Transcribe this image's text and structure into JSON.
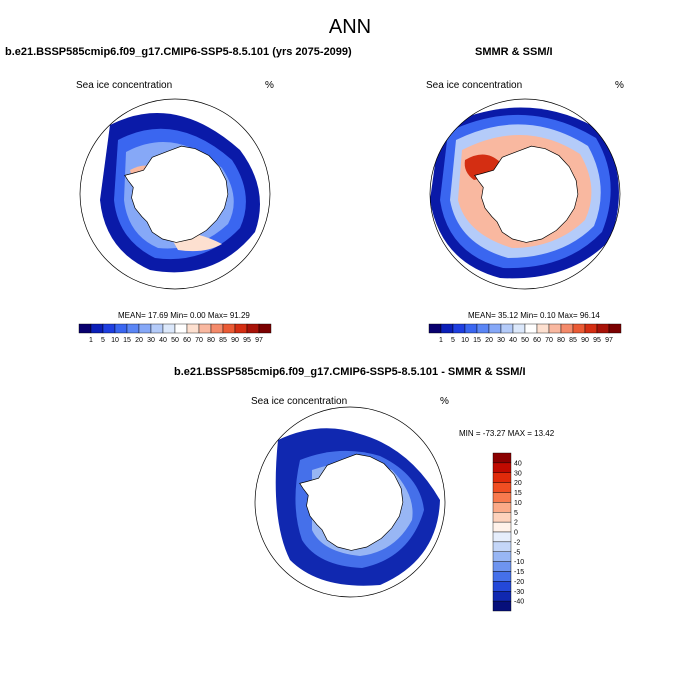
{
  "title": "ANN",
  "panels": [
    {
      "title": "b.e21.BSSP585cmip6.f09_g17.CMIP6-SSP5-8.5.101 (yrs 2075-2099)",
      "variable": "Sea ice concentration",
      "units": "%",
      "stats": "MEAN=  17.69  Min=   0.00  Max=  91.29"
    },
    {
      "title": "SMMR & SSM/I",
      "variable": "Sea ice concentration",
      "units": "%",
      "stats": "MEAN=  35.12  Min=   0.10  Max=  96.14"
    },
    {
      "title": "b.e21.BSSP585cmip6.f09_g17.CMIP6-SSP5-8.5.101 - SMMR & SSM/I",
      "variable": "Sea ice concentration",
      "units": "%",
      "stats": "MIN = -73.27  MAX =  13.42"
    }
  ],
  "colorbar_abs": {
    "labels": [
      "1",
      "5",
      "10",
      "15",
      "20",
      "30",
      "40",
      "50",
      "60",
      "70",
      "80",
      "85",
      "90",
      "95",
      "97"
    ],
    "colors": [
      "#08006e",
      "#0b1fb8",
      "#1f3fe0",
      "#3a66f0",
      "#5b86f5",
      "#86a8f7",
      "#b4cbf9",
      "#dce8fb",
      "#ffffff",
      "#fde0d0",
      "#f9b8a0",
      "#f48a6a",
      "#ea5a34",
      "#d42e12",
      "#a81208",
      "#7a0000"
    ]
  },
  "colorbar_diff": {
    "labels": [
      "40",
      "30",
      "20",
      "15",
      "10",
      "5",
      "2",
      "0",
      "-2",
      "-5",
      "-10",
      "-15",
      "-20",
      "-30",
      "-40"
    ],
    "colors": [
      "#8b0000",
      "#c00a00",
      "#e02a0a",
      "#f04e22",
      "#f87a4e",
      "#fbaa88",
      "#fdd2bc",
      "#fff2ea",
      "#e6eefc",
      "#c4d6f8",
      "#98b6f4",
      "#6e94ef",
      "#4570ea",
      "#2448d8",
      "#1028b0",
      "#060f7a"
    ]
  },
  "colors": {
    "land": "#ffffff",
    "coast": "#000000",
    "high_ice": "#0a1aa8",
    "low_ice": "#f2a384",
    "peak_ice": "#d42e12"
  }
}
